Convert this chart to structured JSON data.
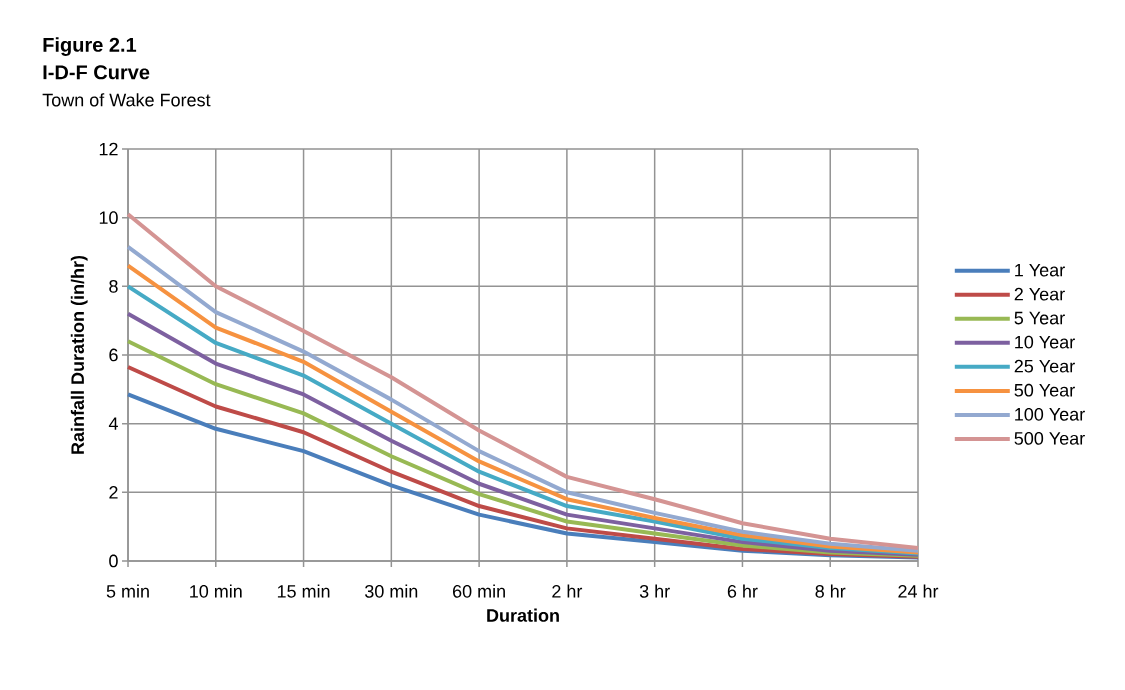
{
  "chart_data": {
    "type": "line",
    "title": "Figure 2.1",
    "subtitle": "I-D-F Curve",
    "annotations": [
      "Town of Wake Forest"
    ],
    "xlabel": "Duration",
    "ylabel": "Rainfall Duration (in/hr)",
    "categories": [
      "5 min",
      "10 min",
      "15 min",
      "30 min",
      "60 min",
      "2 hr",
      "3 hr",
      "6 hr",
      "8 hr",
      "24 hr"
    ],
    "series": [
      {
        "name": "1 Year",
        "color": "#4a7ebb",
        "values": [
          4.85,
          3.85,
          3.2,
          2.2,
          1.35,
          0.8,
          0.55,
          0.3,
          0.17,
          0.1
        ]
      },
      {
        "name": "2 Year",
        "color": "#be4b48",
        "values": [
          5.65,
          4.5,
          3.75,
          2.6,
          1.6,
          0.95,
          0.65,
          0.35,
          0.2,
          0.12
        ]
      },
      {
        "name": "5 Year",
        "color": "#98b954",
        "values": [
          6.4,
          5.15,
          4.3,
          3.05,
          1.95,
          1.15,
          0.8,
          0.45,
          0.25,
          0.15
        ]
      },
      {
        "name": "10 Year",
        "color": "#7d60a0",
        "values": [
          7.2,
          5.75,
          4.85,
          3.5,
          2.25,
          1.35,
          0.95,
          0.55,
          0.3,
          0.18
        ]
      },
      {
        "name": "25 Year",
        "color": "#46aac5",
        "values": [
          8.0,
          6.35,
          5.4,
          4.0,
          2.6,
          1.6,
          1.15,
          0.65,
          0.38,
          0.22
        ]
      },
      {
        "name": "50 Year",
        "color": "#f69240",
        "values": [
          8.6,
          6.8,
          5.8,
          4.35,
          2.9,
          1.8,
          1.25,
          0.75,
          0.42,
          0.25
        ]
      },
      {
        "name": "100 Year",
        "color": "#93a9d0",
        "values": [
          9.15,
          7.25,
          6.1,
          4.7,
          3.2,
          2.0,
          1.4,
          0.85,
          0.5,
          0.3
        ]
      },
      {
        "name": "500 Year",
        "color": "#d49493",
        "values": [
          10.1,
          8.0,
          6.7,
          5.35,
          3.8,
          2.45,
          1.8,
          1.1,
          0.65,
          0.38
        ]
      }
    ],
    "ylim": [
      0,
      12
    ],
    "yticks": [
      0,
      2,
      4,
      6,
      8,
      10,
      12
    ],
    "grid": true,
    "legend": "right",
    "marker": "none",
    "line_style": "solid"
  }
}
